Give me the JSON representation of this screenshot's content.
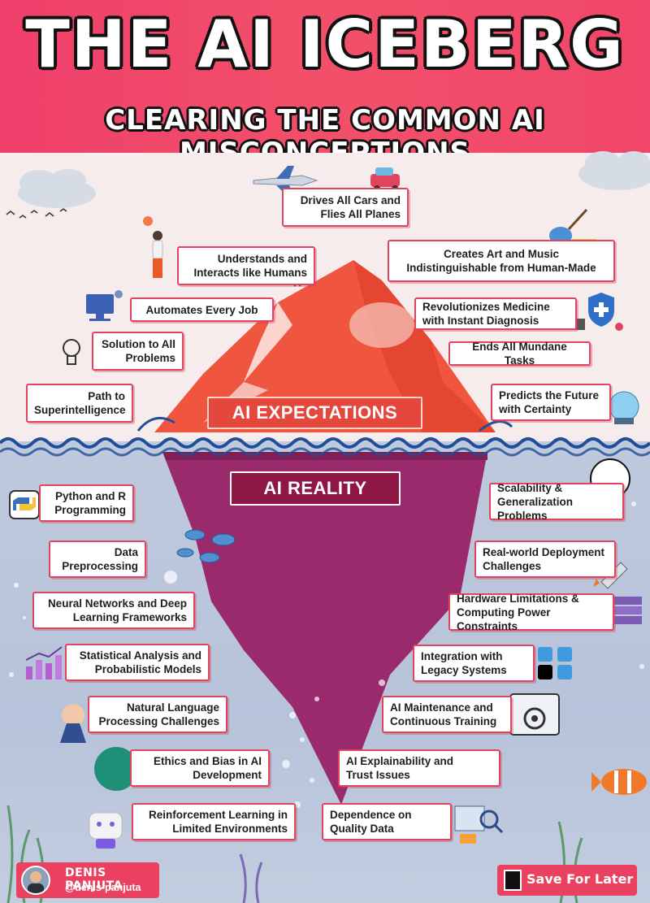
{
  "header": {
    "title": "THE AI ICEBERG",
    "subtitle": "CLEARING THE COMMON AI MISCONCEPTIONS"
  },
  "banners": {
    "expectations": "AI EXPECTATIONS",
    "reality": "AI REALITY"
  },
  "expectations": [
    {
      "text": "Drives All Cars and\nFlies All Planes"
    },
    {
      "text": "Understands and\nInteracts like Humans"
    },
    {
      "text": "Creates Art and Music\nIndistinguishable from Human-Made"
    },
    {
      "text": "Automates Every Job"
    },
    {
      "text": "Revolutionizes Medicine\nwith Instant Diagnosis"
    },
    {
      "text": "Solution to All\nProblems"
    },
    {
      "text": "Ends All Mundane Tasks"
    },
    {
      "text": "Path to\nSuperintelligence"
    },
    {
      "text": "Predicts the Future\nwith Certainty"
    }
  ],
  "reality_left": [
    {
      "text": "Python and R\nProgramming"
    },
    {
      "text": "Data\nPreprocessing"
    },
    {
      "text": "Neural Networks and Deep\nLearning Frameworks"
    },
    {
      "text": "Statistical Analysis and\nProbabilistic Models"
    },
    {
      "text": "Natural Language\nProcessing Challenges"
    },
    {
      "text": "Ethics and Bias in AI\nDevelopment"
    },
    {
      "text": "Reinforcement Learning in\nLimited Environments"
    }
  ],
  "reality_right": [
    {
      "text": "Scalability &\nGeneralization Problems"
    },
    {
      "text": "Real-world Deployment\nChallenges"
    },
    {
      "text": "Hardware Limitations &\nComputing Power Constraints"
    },
    {
      "text": "Integration with\nLegacy Systems"
    },
    {
      "text": "AI Maintenance and\nContinuous Training"
    },
    {
      "text": "AI Explainability and\nTrust Issues"
    },
    {
      "text": "Dependence on\nQuality Data"
    }
  ],
  "footer": {
    "author_name": "DENIS PANJUTA",
    "author_handle": "@denis-panjuta",
    "save_label": "Save For Later"
  },
  "colors": {
    "header_pink": "#ef3f6b",
    "box_border": "#e0445f",
    "iceberg_top": "#f0563f",
    "iceberg_bottom": "#9b2a6d",
    "sky": "#f6ecec",
    "sea": "#bfc9dd",
    "wave": "#1f4f9b"
  },
  "icons": [
    "airplane-icon",
    "car-icon",
    "person-icon",
    "guitar-icon",
    "computer-icon",
    "medical-shield-icon",
    "lightbulb-icon",
    "crystal-ball-icon",
    "python-icon",
    "fish-icon",
    "rocket-icon",
    "server-icon",
    "chart-icon",
    "app-tiles-icon",
    "brain-icon",
    "gear-icon",
    "robot-icon",
    "magnifier-icon",
    "clownfish-icon",
    "cloud-icon",
    "bird-icon"
  ]
}
